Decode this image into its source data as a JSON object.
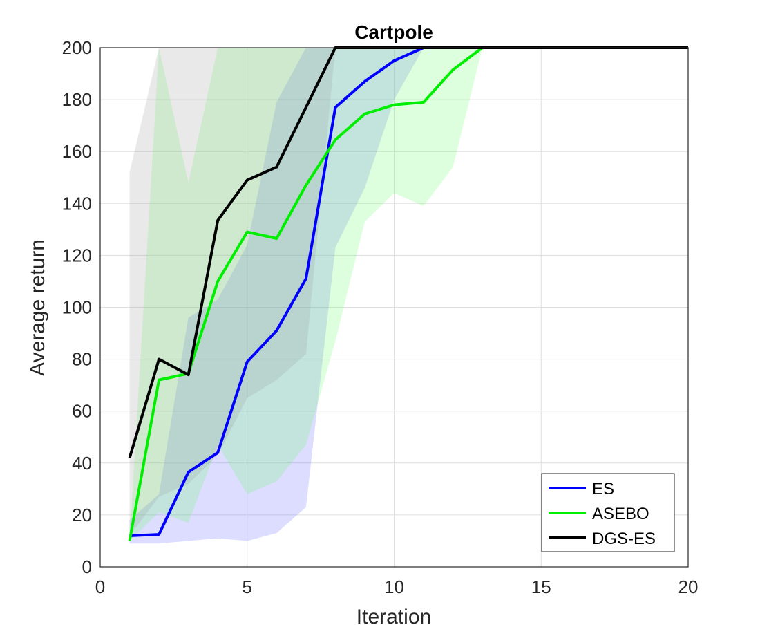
{
  "chart_data": {
    "type": "line",
    "title": "Cartpole",
    "xlabel": "Iteration",
    "ylabel": "Average return",
    "xlim": [
      0,
      20
    ],
    "ylim": [
      0,
      200
    ],
    "xticks": [
      0,
      5,
      10,
      15,
      20
    ],
    "yticks": [
      0,
      20,
      40,
      60,
      80,
      100,
      120,
      140,
      160,
      180,
      200
    ],
    "grid": true,
    "legend_position": "bottom-right",
    "series": [
      {
        "name": "ES",
        "color": "#0000ff",
        "band_color": "#6666ff",
        "x": [
          1,
          2,
          3,
          4,
          5,
          6,
          7,
          8,
          9,
          10,
          11,
          12,
          13,
          14,
          15,
          16,
          17,
          18,
          19,
          20
        ],
        "y": [
          12,
          12.5,
          36.5,
          44,
          79,
          91,
          111,
          177,
          187,
          195,
          200,
          200,
          200,
          200,
          200,
          200,
          200,
          200,
          200,
          200
        ],
        "lower": [
          9,
          9,
          10,
          11,
          10,
          13,
          23,
          123,
          146,
          180,
          200,
          200,
          200,
          200,
          200,
          200,
          200,
          200,
          200,
          200
        ],
        "upper": [
          18,
          28,
          96,
          103,
          124,
          179,
          200,
          200,
          200,
          200,
          200,
          200,
          200,
          200,
          200,
          200,
          200,
          200,
          200,
          200
        ]
      },
      {
        "name": "ASEBO",
        "color": "#00ee00",
        "band_color": "#66ff66",
        "x": [
          1,
          2,
          3,
          4,
          5,
          6,
          7,
          8,
          9,
          10,
          11,
          12,
          13,
          14,
          15,
          16,
          17,
          18,
          19,
          20
        ],
        "y": [
          10,
          72,
          74.5,
          110,
          129,
          126.5,
          147,
          164.5,
          174.5,
          178,
          179,
          191.5,
          200,
          200,
          200,
          200,
          200,
          200,
          200,
          200
        ],
        "lower": [
          10,
          21,
          17,
          47,
          28,
          33,
          47,
          87,
          133,
          144,
          139,
          154,
          200,
          200,
          200,
          200,
          200,
          200,
          200,
          200
        ],
        "upper": [
          10,
          200,
          148,
          200,
          200,
          200,
          200,
          200,
          200,
          200,
          200,
          200,
          200,
          200,
          200,
          200,
          200,
          200,
          200,
          200
        ]
      },
      {
        "name": "DGS-ES",
        "color": "#000000",
        "band_color": "#999999",
        "x": [
          1,
          2,
          3,
          4,
          5,
          6,
          7,
          8,
          9,
          10,
          11,
          12,
          13,
          14,
          15,
          16,
          17,
          18,
          19,
          20
        ],
        "y": [
          42,
          80,
          74,
          133.5,
          149,
          154,
          177,
          200,
          200,
          200,
          200,
          200,
          200,
          200,
          200,
          200,
          200,
          200,
          200,
          200
        ],
        "lower": [
          12,
          27,
          32,
          43,
          65,
          72,
          82,
          200,
          200,
          200,
          200,
          200,
          200,
          200,
          200,
          200,
          200,
          200,
          200,
          200
        ],
        "upper": [
          152,
          200,
          200,
          200,
          200,
          200,
          200,
          200,
          200,
          200,
          200,
          200,
          200,
          200,
          200,
          200,
          200,
          200,
          200,
          200
        ]
      }
    ]
  }
}
